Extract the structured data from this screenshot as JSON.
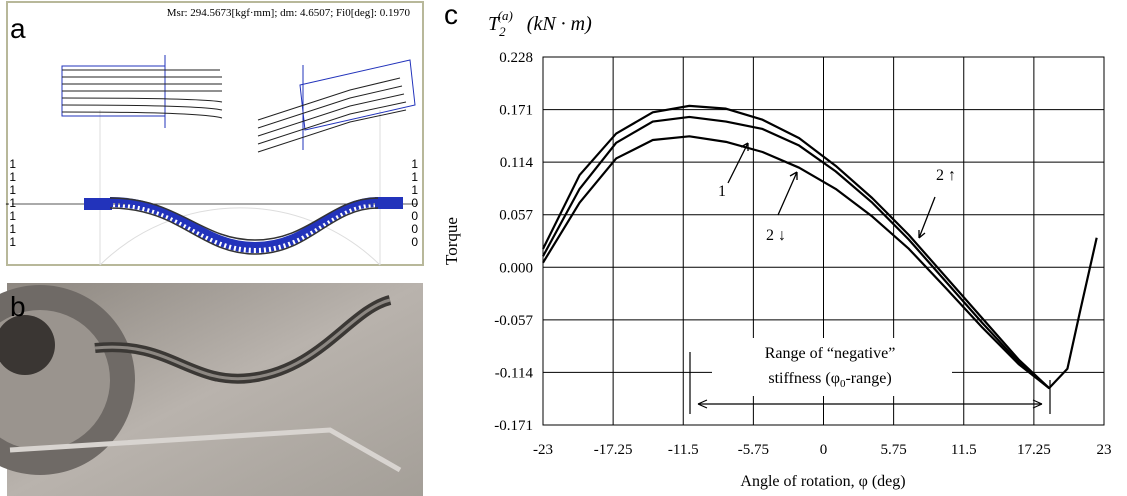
{
  "panel_labels": [
    "a",
    "b",
    "c"
  ],
  "simulation": {
    "header": "Msr: 294.5673[kgf·mm];   dm: 4.6507;   Fi0[deg]: 0.1970",
    "left_ticks": [
      "1",
      "1",
      "1",
      "-1",
      "1",
      "1",
      "1"
    ],
    "right_ticks": [
      "1",
      "1",
      "1",
      "0",
      "0",
      "0",
      "0"
    ]
  },
  "chart_data": {
    "type": "line",
    "y_unit_label": {
      "symbol": "T",
      "subscript": "2",
      "superscript": "(a)",
      "unit": "(kN · m)"
    },
    "ylabel": "Torque",
    "xlabel": "Angle of rotation, φ (deg)",
    "xlim": [
      -23,
      23
    ],
    "xticks": [
      -23,
      -17.25,
      -11.5,
      -5.75,
      0,
      5.75,
      11.5,
      17.25,
      23
    ],
    "ylim": [
      -0.171,
      0.228
    ],
    "yticks": [
      -0.171,
      -0.114,
      -0.057,
      {
        "value": 0,
        "label": "0.000"
      },
      0.057,
      0.114,
      0.171,
      0.228
    ],
    "grid": true,
    "x": [
      -23,
      -20,
      -17,
      -14,
      -11,
      -8,
      -5,
      -2,
      1,
      4,
      7,
      10,
      13,
      16,
      18.5,
      20,
      21,
      22.4
    ],
    "series": [
      {
        "color": "#000000",
        "values": [
          0.02,
          0.1,
          0.145,
          0.168,
          0.175,
          0.172,
          0.16,
          0.14,
          0.11,
          0.075,
          0.035,
          -0.01,
          -0.055,
          -0.1,
          -0.131,
          -0.11,
          -0.05,
          0.032
        ]
      },
      {
        "color": "#000000",
        "values": [
          0.012,
          0.085,
          0.135,
          0.158,
          0.163,
          0.158,
          0.15,
          0.132,
          0.104,
          0.07,
          0.03,
          -0.015,
          -0.06,
          -0.103,
          -0.131,
          null,
          null,
          null
        ]
      },
      {
        "color": "#000000",
        "values": [
          0.005,
          0.07,
          0.118,
          0.138,
          0.142,
          0.136,
          0.125,
          0.108,
          0.085,
          0.055,
          0.02,
          -0.022,
          -0.065,
          -0.105,
          -0.131,
          null,
          null,
          null
        ]
      }
    ],
    "annotations": [
      "1",
      "2 ↓",
      "2 ↑"
    ],
    "range_label": {
      "line1": "Range of “negative”",
      "before": "stiffness (φ",
      "sub": "0",
      "after": "-range)"
    }
  }
}
